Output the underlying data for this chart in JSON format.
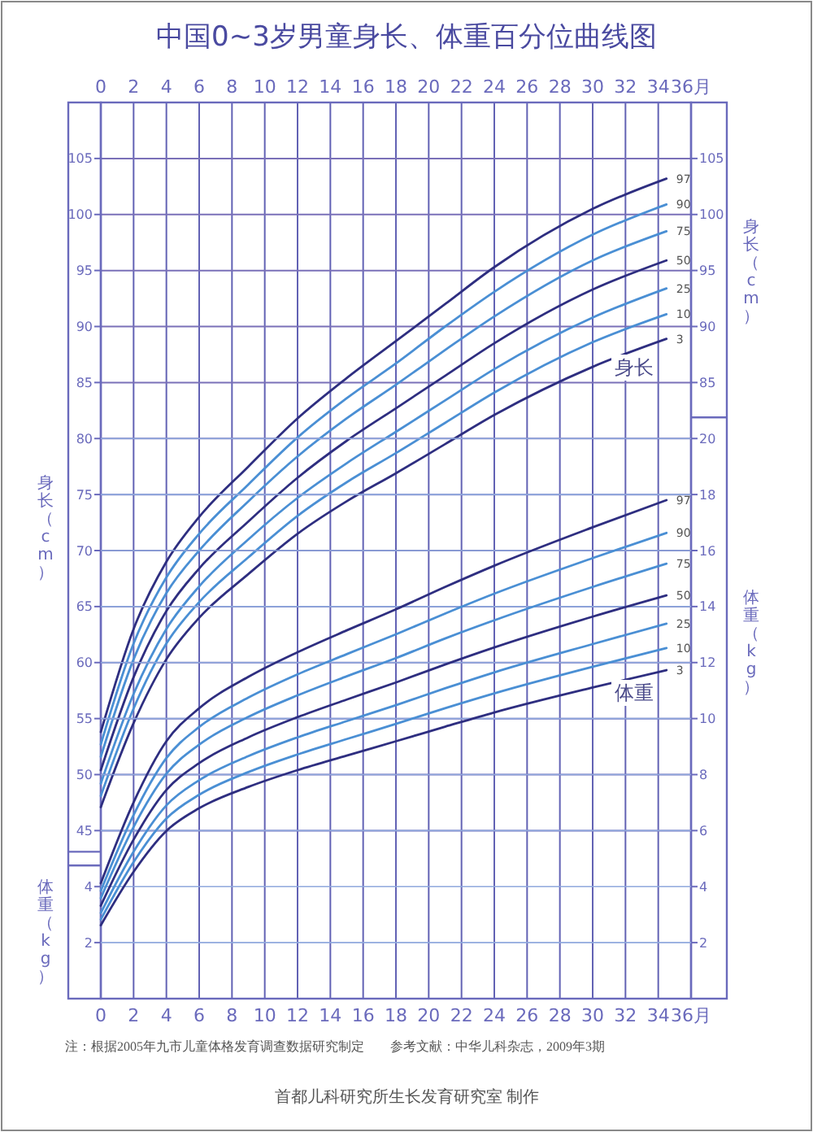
{
  "chart_data": [
    {
      "type": "line",
      "title": "中国0~3岁男童身长、体重百分位曲线图",
      "ylabel": "身长（cm）",
      "y2label": "身长（cm）",
      "x": [
        0,
        2,
        4,
        6,
        9,
        12,
        15,
        18,
        21,
        24,
        30,
        34.5
      ],
      "xlim": [
        0,
        36
      ],
      "xticks": [
        0,
        2,
        4,
        6,
        8,
        10,
        12,
        14,
        16,
        18,
        20,
        22,
        24,
        26,
        28,
        30,
        32,
        34,
        {
          "value": 36,
          "label": "36月"
        }
      ],
      "x2lim": [
        0,
        36
      ],
      "x2ticks": [
        0,
        2,
        4,
        6,
        8,
        10,
        12,
        14,
        16,
        18,
        20,
        22,
        24,
        26,
        28,
        30,
        32,
        34,
        {
          "value": 36,
          "label": "36月"
        }
      ],
      "ylim": [
        30,
        110
      ],
      "yticks": [
        45,
        50,
        55,
        60,
        65,
        70,
        75,
        80,
        85,
        90,
        95,
        100,
        105
      ],
      "y2lim": [
        30,
        110
      ],
      "y2ticks": [
        85,
        90,
        95,
        100,
        105
      ],
      "grid": true,
      "series": [
        {
          "name": "97",
          "color": "#2e2e80",
          "values": [
            53.8,
            63.0,
            69.0,
            73.0,
            77.5,
            81.8,
            85.4,
            88.7,
            92.0,
            95.3,
            100.5,
            103.2
          ]
        },
        {
          "name": "90",
          "color": "#4a8fd4",
          "values": [
            52.7,
            61.7,
            67.6,
            71.5,
            75.9,
            80.1,
            83.6,
            86.7,
            90.0,
            93.1,
            98.2,
            100.9
          ]
        },
        {
          "name": "75",
          "color": "#4a8fd4",
          "values": [
            51.6,
            60.3,
            66.2,
            70.0,
            74.4,
            78.4,
            81.8,
            84.8,
            87.9,
            90.9,
            95.9,
            98.5
          ]
        },
        {
          "name": "50",
          "color": "#2e2e80",
          "values": [
            50.4,
            58.7,
            64.6,
            68.4,
            72.6,
            76.5,
            79.8,
            82.7,
            85.6,
            88.5,
            93.3,
            95.9
          ]
        },
        {
          "name": "25",
          "color": "#4a8fd4",
          "values": [
            49.2,
            57.2,
            63.0,
            66.8,
            71.0,
            74.7,
            77.8,
            80.6,
            83.4,
            86.2,
            90.8,
            93.4
          ]
        },
        {
          "name": "10",
          "color": "#4a8fd4",
          "values": [
            48.1,
            55.9,
            61.7,
            65.4,
            69.4,
            73.1,
            76.1,
            78.7,
            81.4,
            84.1,
            88.6,
            91.1
          ]
        },
        {
          "name": "3",
          "color": "#2e2e80",
          "values": [
            47.1,
            54.6,
            60.3,
            64.0,
            67.9,
            71.5,
            74.4,
            76.9,
            79.5,
            82.1,
            86.4,
            88.9
          ]
        }
      ],
      "annotations": [
        "身长",
        "注：根据2005年九市儿童体格发育调查数据研究制定",
        "参考文献：中华儿科杂志，2009年3期",
        "首都儿科研究所生长发育研究室 制作"
      ]
    },
    {
      "type": "line",
      "ylabel": "体重（kg）",
      "y2label": "体重（kg）",
      "x": [
        0,
        2,
        4,
        6,
        9,
        12,
        15,
        18,
        21,
        24,
        30,
        34.5
      ],
      "xlim": [
        0,
        36
      ],
      "tick_labels": "y",
      "ylim": [
        0,
        32
      ],
      "yticks": [
        2,
        4
      ],
      "y2lim": [
        0,
        32
      ],
      "y2ticks": [
        2,
        4,
        6,
        8,
        10,
        12,
        14,
        16,
        18,
        20
      ],
      "grid": "y",
      "series": [
        {
          "name": "97",
          "color": "#2e2e80",
          "values": [
            4.12,
            7.01,
            9.19,
            10.37,
            11.49,
            12.37,
            13.15,
            13.9,
            14.7,
            15.46,
            16.83,
            17.8
          ]
        },
        {
          "name": "90",
          "color": "#4a8fd4",
          "values": [
            3.85,
            6.56,
            8.59,
            9.7,
            10.75,
            11.58,
            12.3,
            13.01,
            13.75,
            14.46,
            15.73,
            16.63
          ]
        },
        {
          "name": "75",
          "color": "#4a8fd4",
          "values": [
            3.59,
            6.13,
            8.03,
            9.07,
            10.06,
            10.83,
            11.51,
            12.16,
            12.86,
            13.51,
            14.7,
            15.53
          ]
        },
        {
          "name": "50",
          "color": "#2e2e80",
          "values": [
            3.32,
            5.68,
            7.45,
            8.41,
            9.33,
            10.05,
            10.68,
            11.29,
            11.93,
            12.54,
            13.64,
            14.4
          ]
        },
        {
          "name": "25",
          "color": "#4a8fd4",
          "values": [
            3.06,
            5.25,
            6.9,
            7.8,
            8.66,
            9.33,
            9.91,
            10.48,
            11.08,
            11.65,
            12.66,
            13.39
          ]
        },
        {
          "name": "10",
          "color": "#4a8fd4",
          "values": [
            2.83,
            4.88,
            6.43,
            7.28,
            8.09,
            8.72,
            9.27,
            9.81,
            10.37,
            10.9,
            11.85,
            12.52
          ]
        },
        {
          "name": "3",
          "color": "#2e2e80",
          "values": [
            2.62,
            4.53,
            5.99,
            6.8,
            7.56,
            8.16,
            8.68,
            9.19,
            9.71,
            10.22,
            11.11,
            11.73
          ]
        }
      ],
      "annotations": [
        "体重"
      ]
    }
  ]
}
